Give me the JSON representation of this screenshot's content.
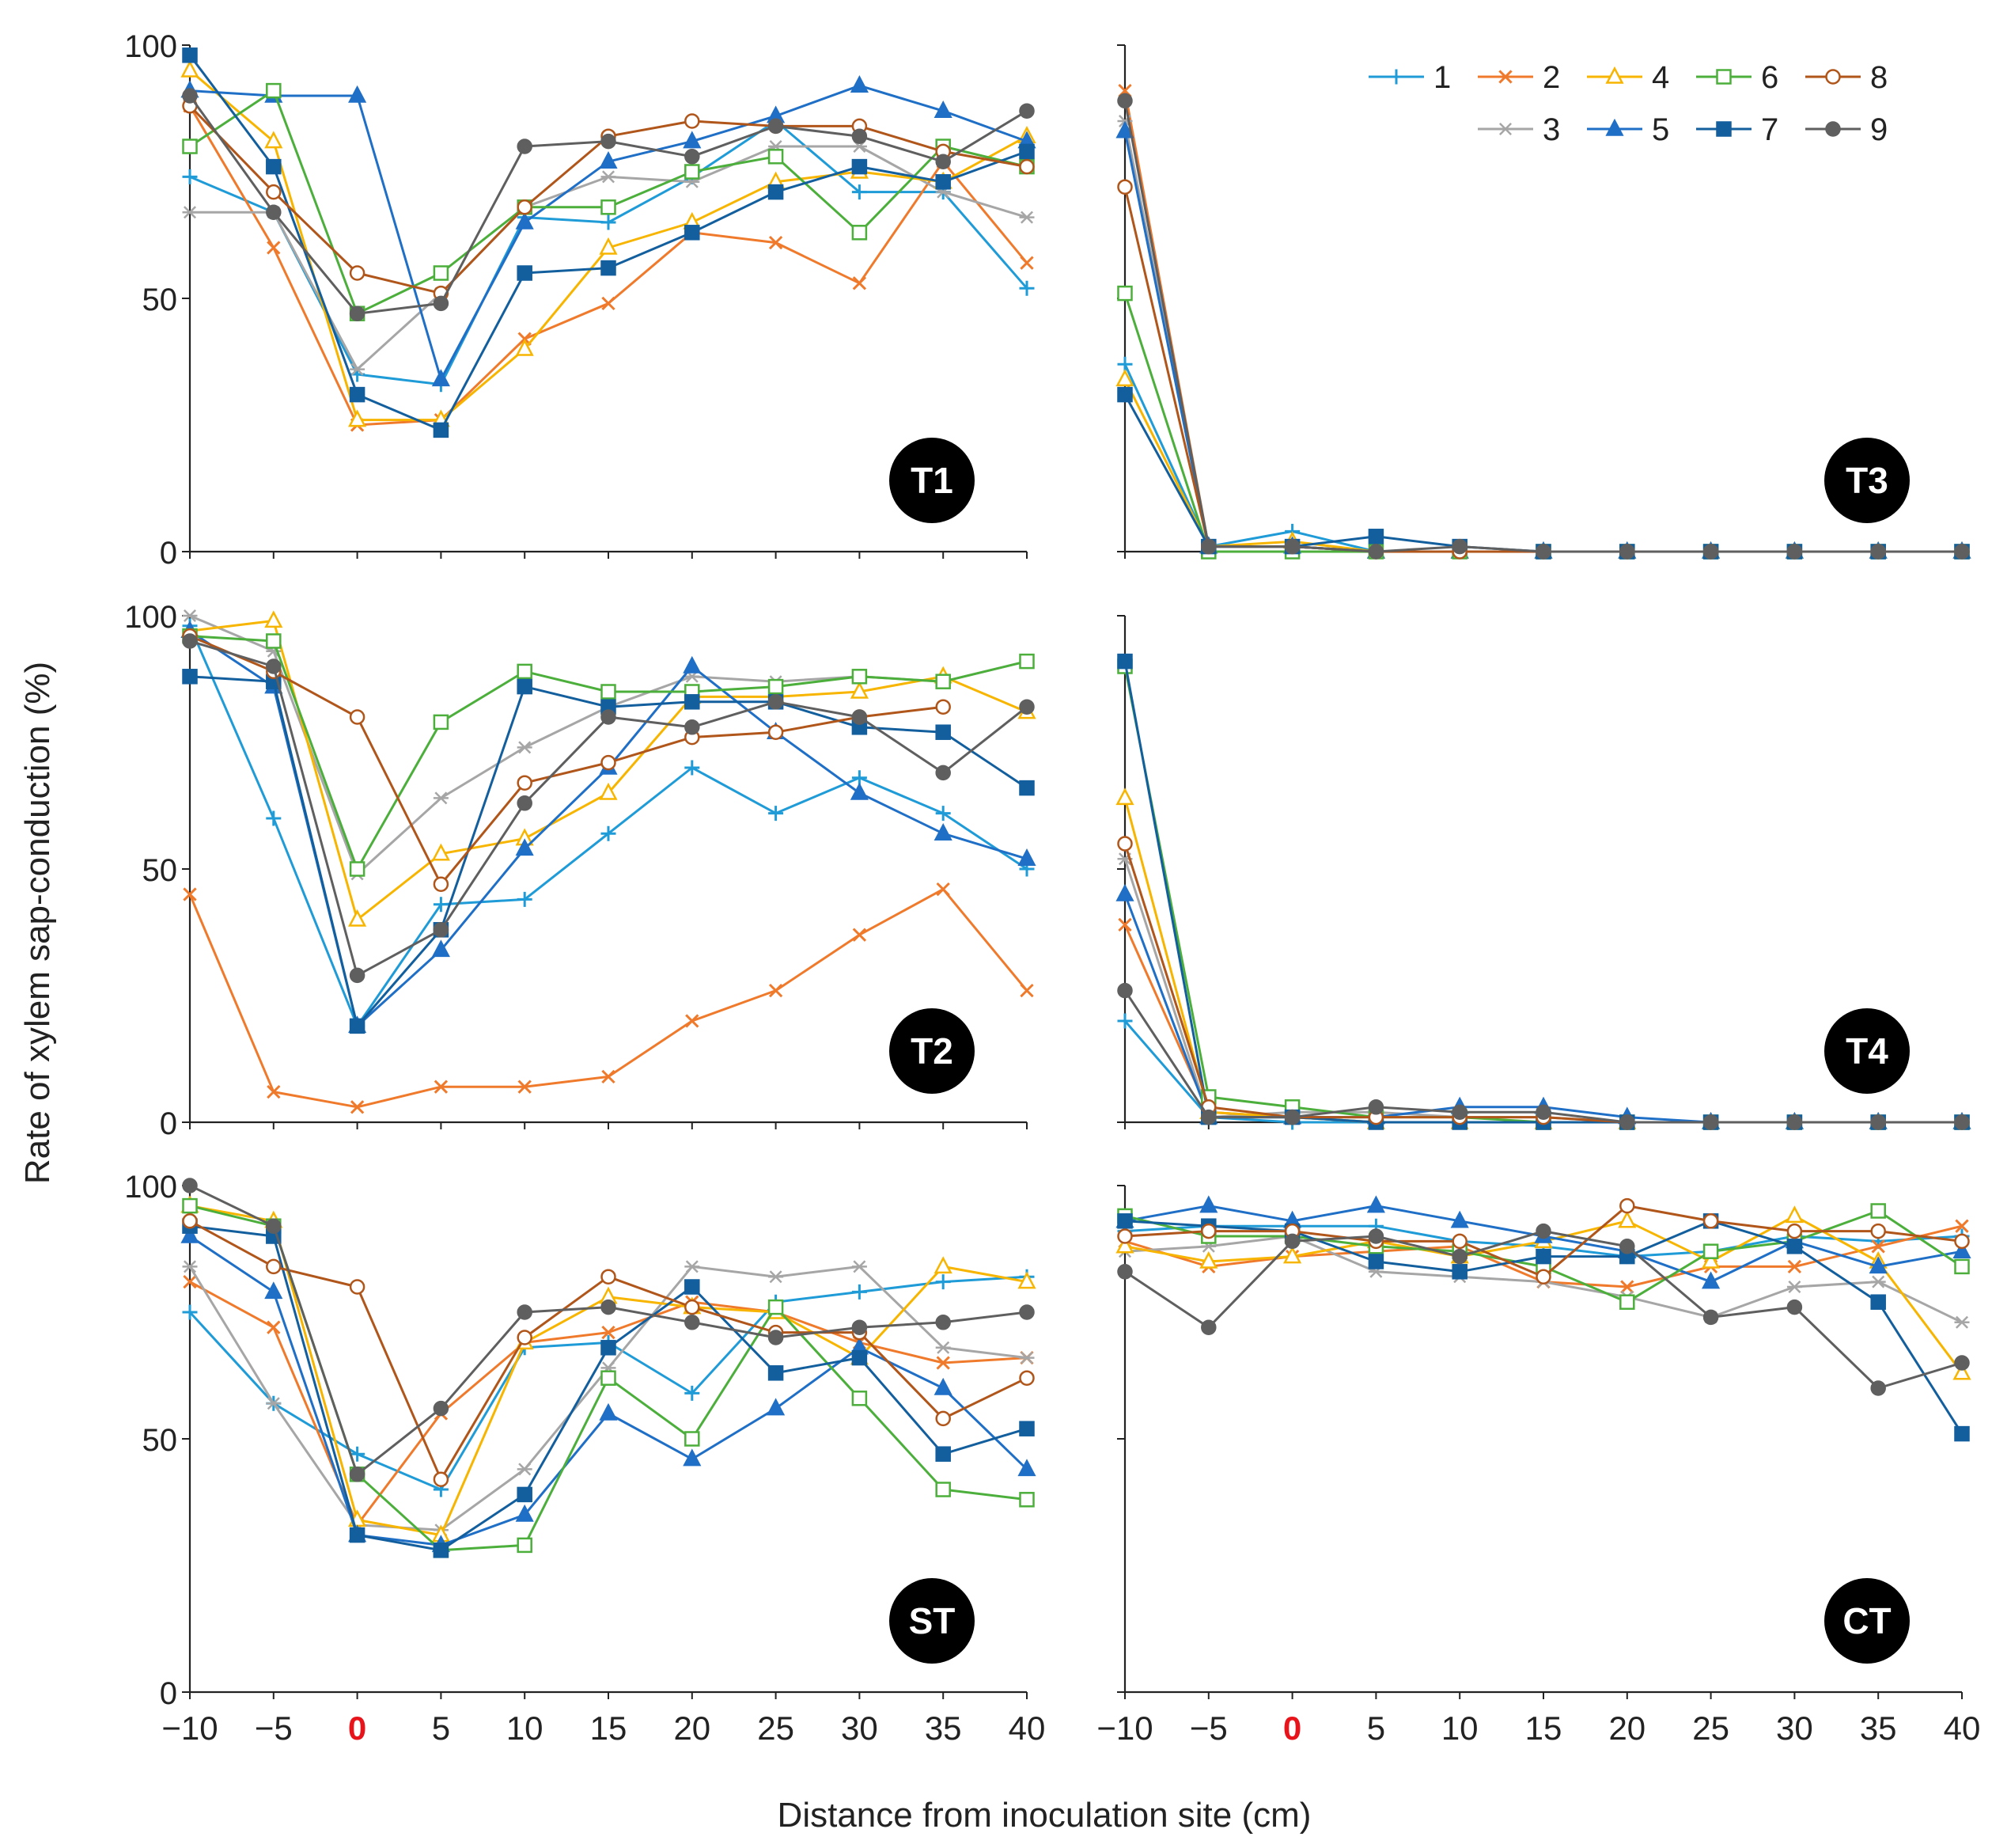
{
  "figure": {
    "ylabel": "Rate of xylem sap-conduction (%)",
    "xlabel": "Distance from inoculation site (cm)",
    "x_ticks": [
      "−10",
      "−5",
      "0",
      "5",
      "10",
      "15",
      "20",
      "25",
      "30",
      "35",
      "40"
    ],
    "highlight_tick": "0",
    "highlight_color": "#e8141b",
    "y_ticks": [
      "0",
      "50",
      "100"
    ],
    "legend_entries": [
      "1",
      "2",
      "4",
      "6",
      "8",
      "3",
      "5",
      "7",
      "9"
    ]
  },
  "chart_data": [
    {
      "type": "line",
      "panel": "T1",
      "position": "top-left",
      "x": [
        -10,
        -5,
        0,
        5,
        10,
        15,
        20,
        25,
        30,
        35,
        40
      ],
      "xlim": [
        -10,
        40
      ],
      "ylim": [
        0,
        100
      ],
      "show_y_tick_labels": true,
      "series": [
        {
          "name": "1",
          "values": [
            74,
            67,
            35,
            33,
            66,
            65,
            74,
            85,
            71,
            71,
            52
          ]
        },
        {
          "name": "2",
          "values": [
            88,
            60,
            25,
            26,
            42,
            49,
            63,
            61,
            53,
            77,
            57
          ]
        },
        {
          "name": "3",
          "values": [
            67,
            67,
            36,
            51,
            68,
            74,
            73,
            80,
            80,
            71,
            66
          ]
        },
        {
          "name": "4",
          "values": [
            95,
            81,
            26,
            26,
            40,
            60,
            65,
            73,
            75,
            73,
            82
          ]
        },
        {
          "name": "5",
          "values": [
            91,
            90,
            90,
            34,
            65,
            77,
            81,
            86,
            92,
            87,
            81
          ]
        },
        {
          "name": "6",
          "values": [
            80,
            91,
            47,
            55,
            68,
            68,
            75,
            78,
            63,
            80,
            76
          ]
        },
        {
          "name": "7",
          "values": [
            98,
            76,
            31,
            24,
            55,
            56,
            63,
            71,
            76,
            73,
            79
          ]
        },
        {
          "name": "8",
          "values": [
            88,
            71,
            55,
            51,
            68,
            82,
            85,
            84,
            84,
            79,
            76
          ]
        },
        {
          "name": "9",
          "values": [
            90,
            67,
            47,
            49,
            80,
            81,
            78,
            84,
            82,
            77,
            87
          ]
        }
      ]
    },
    {
      "type": "line",
      "panel": "T3",
      "position": "top-right",
      "x": [
        -10,
        -5,
        0,
        5,
        10,
        15,
        20,
        25,
        30,
        35,
        40
      ],
      "xlim": [
        -10,
        40
      ],
      "ylim": [
        0,
        100
      ],
      "show_y_tick_labels": false,
      "series": [
        {
          "name": "1",
          "values": [
            37,
            1,
            4,
            0,
            0,
            0,
            0,
            0,
            0,
            0,
            0
          ]
        },
        {
          "name": "2",
          "values": [
            91,
            1,
            1,
            0,
            0,
            0,
            0,
            0,
            0,
            0,
            0
          ]
        },
        {
          "name": "3",
          "values": [
            85,
            1,
            1,
            0,
            0,
            0,
            0,
            0,
            0,
            0,
            0
          ]
        },
        {
          "name": "4",
          "values": [
            34,
            1,
            2,
            0,
            0,
            0,
            0,
            0,
            0,
            0,
            0
          ]
        },
        {
          "name": "5",
          "values": [
            83,
            1,
            1,
            0,
            0,
            0,
            0,
            0,
            0,
            0,
            0
          ]
        },
        {
          "name": "6",
          "values": [
            51,
            0,
            0,
            0,
            0,
            0,
            0,
            0,
            0,
            0,
            0
          ]
        },
        {
          "name": "7",
          "values": [
            31,
            1,
            1,
            3,
            1,
            0,
            0,
            0,
            0,
            0,
            0
          ]
        },
        {
          "name": "8",
          "values": [
            72,
            1,
            1,
            0,
            0,
            0,
            0,
            0,
            0,
            0,
            0
          ]
        },
        {
          "name": "9",
          "values": [
            89,
            1,
            1,
            0,
            1,
            0,
            0,
            0,
            0,
            0,
            0
          ]
        }
      ]
    },
    {
      "type": "line",
      "panel": "T2",
      "position": "middle-left",
      "x": [
        -10,
        -5,
        0,
        5,
        10,
        15,
        20,
        25,
        30,
        35,
        40
      ],
      "xlim": [
        -10,
        40
      ],
      "ylim": [
        0,
        100
      ],
      "show_y_tick_labels": true,
      "series": [
        {
          "name": "1",
          "values": [
            98,
            60,
            19,
            43,
            44,
            57,
            70,
            61,
            68,
            61,
            50
          ]
        },
        {
          "name": "2",
          "values": [
            45,
            6,
            3,
            7,
            7,
            9,
            20,
            26,
            37,
            46,
            26
          ]
        },
        {
          "name": "3",
          "values": [
            100,
            93,
            49,
            64,
            74,
            82,
            88,
            87,
            88,
            87,
            91
          ]
        },
        {
          "name": "4",
          "values": [
            97,
            99,
            40,
            53,
            56,
            65,
            84,
            84,
            85,
            88,
            81
          ]
        },
        {
          "name": "5",
          "values": [
            97,
            86,
            19,
            34,
            54,
            70,
            90,
            77,
            65,
            57,
            52
          ]
        },
        {
          "name": "6",
          "values": [
            96,
            95,
            50,
            79,
            89,
            85,
            85,
            86,
            88,
            87,
            91
          ]
        },
        {
          "name": "7",
          "values": [
            88,
            87,
            19,
            38,
            86,
            82,
            83,
            83,
            78,
            77,
            66
          ]
        },
        {
          "name": "8",
          "values": [
            96,
            89,
            80,
            47,
            67,
            71,
            76,
            77,
            80,
            82,
            null
          ]
        },
        {
          "name": "9",
          "values": [
            95,
            90,
            29,
            38,
            63,
            80,
            78,
            83,
            80,
            69,
            82
          ]
        }
      ]
    },
    {
      "type": "line",
      "panel": "T4",
      "position": "middle-right",
      "x": [
        -10,
        -5,
        0,
        5,
        10,
        15,
        20,
        25,
        30,
        35,
        40
      ],
      "xlim": [
        -10,
        40
      ],
      "ylim": [
        0,
        100
      ],
      "show_y_tick_labels": false,
      "series": [
        {
          "name": "1",
          "values": [
            20,
            1,
            0,
            0,
            0,
            0,
            0,
            0,
            0,
            0,
            0
          ]
        },
        {
          "name": "2",
          "values": [
            39,
            2,
            1,
            0,
            0,
            0,
            0,
            0,
            0,
            0,
            0
          ]
        },
        {
          "name": "3",
          "values": [
            52,
            1,
            2,
            2,
            1,
            1,
            0,
            0,
            0,
            0,
            0
          ]
        },
        {
          "name": "4",
          "values": [
            64,
            2,
            1,
            0,
            0,
            0,
            0,
            0,
            0,
            0,
            0
          ]
        },
        {
          "name": "5",
          "values": [
            45,
            1,
            1,
            1,
            3,
            3,
            1,
            0,
            0,
            0,
            0
          ]
        },
        {
          "name": "6",
          "values": [
            90,
            5,
            3,
            1,
            1,
            0,
            0,
            0,
            0,
            0,
            0
          ]
        },
        {
          "name": "7",
          "values": [
            91,
            1,
            1,
            0,
            0,
            0,
            0,
            0,
            0,
            0,
            0
          ]
        },
        {
          "name": "8",
          "values": [
            55,
            3,
            1,
            1,
            1,
            1,
            0,
            0,
            0,
            0,
            0
          ]
        },
        {
          "name": "9",
          "values": [
            26,
            1,
            1,
            3,
            2,
            2,
            0,
            0,
            0,
            0,
            0
          ]
        }
      ]
    },
    {
      "type": "line",
      "panel": "ST",
      "position": "bottom-left",
      "x": [
        -10,
        -5,
        0,
        5,
        10,
        15,
        20,
        25,
        30,
        35,
        40
      ],
      "xlim": [
        -10,
        40
      ],
      "ylim": [
        0,
        100
      ],
      "show_y_tick_labels": true,
      "series": [
        {
          "name": "1",
          "values": [
            75,
            57,
            47,
            40,
            68,
            69,
            59,
            77,
            79,
            81,
            82
          ]
        },
        {
          "name": "2",
          "values": [
            81,
            72,
            33,
            55,
            69,
            71,
            77,
            75,
            69,
            65,
            66
          ]
        },
        {
          "name": "3",
          "values": [
            84,
            57,
            33,
            32,
            44,
            64,
            84,
            82,
            84,
            68,
            66
          ]
        },
        {
          "name": "4",
          "values": [
            96,
            93,
            34,
            31,
            69,
            78,
            76,
            75,
            66,
            84,
            81
          ]
        },
        {
          "name": "5",
          "values": [
            90,
            79,
            31,
            29,
            35,
            55,
            46,
            56,
            68,
            60,
            44
          ]
        },
        {
          "name": "6",
          "values": [
            96,
            92,
            43,
            28,
            29,
            62,
            50,
            76,
            58,
            40,
            38
          ]
        },
        {
          "name": "7",
          "values": [
            92,
            90,
            31,
            28,
            39,
            68,
            80,
            63,
            66,
            47,
            52
          ]
        },
        {
          "name": "8",
          "values": [
            93,
            84,
            80,
            42,
            70,
            82,
            76,
            71,
            71,
            54,
            62
          ]
        },
        {
          "name": "9",
          "values": [
            100,
            92,
            43,
            56,
            75,
            76,
            73,
            70,
            72,
            73,
            75
          ]
        }
      ]
    },
    {
      "type": "line",
      "panel": "CT",
      "position": "bottom-right",
      "x": [
        -10,
        -5,
        0,
        5,
        10,
        15,
        20,
        25,
        30,
        35,
        40
      ],
      "xlim": [
        -10,
        40
      ],
      "ylim": [
        0,
        100
      ],
      "show_y_tick_labels": false,
      "series": [
        {
          "name": "1",
          "values": [
            91,
            92,
            92,
            92,
            89,
            88,
            86,
            87,
            90,
            89,
            90
          ]
        },
        {
          "name": "2",
          "values": [
            89,
            84,
            86,
            87,
            88,
            81,
            80,
            84,
            84,
            88,
            92
          ]
        },
        {
          "name": "3",
          "values": [
            87,
            88,
            90,
            83,
            82,
            81,
            78,
            74,
            80,
            81,
            73
          ]
        },
        {
          "name": "4",
          "values": [
            88,
            85,
            86,
            89,
            86,
            89,
            93,
            85,
            94,
            85,
            63
          ]
        },
        {
          "name": "5",
          "values": [
            93,
            96,
            93,
            96,
            93,
            90,
            87,
            81,
            89,
            84,
            87
          ]
        },
        {
          "name": "6",
          "values": [
            94,
            90,
            90,
            88,
            87,
            84,
            77,
            87,
            89,
            95,
            84
          ]
        },
        {
          "name": "7",
          "values": [
            93,
            92,
            91,
            85,
            83,
            86,
            86,
            93,
            88,
            77,
            51
          ]
        },
        {
          "name": "8",
          "values": [
            90,
            91,
            91,
            89,
            89,
            82,
            96,
            93,
            91,
            91,
            89
          ]
        },
        {
          "name": "9",
          "values": [
            83,
            72,
            89,
            90,
            86,
            91,
            88,
            74,
            76,
            60,
            65
          ]
        }
      ]
    }
  ],
  "series_styles": {
    "1": {
      "color": "#1f9bd7",
      "marker": "plus"
    },
    "2": {
      "color": "#f07a2c",
      "marker": "cross"
    },
    "3": {
      "color": "#a6a6a6",
      "marker": "star"
    },
    "4": {
      "color": "#f7b500",
      "marker": "triangle-open"
    },
    "5": {
      "color": "#1f6fc7",
      "marker": "triangle"
    },
    "6": {
      "color": "#4caf3c",
      "marker": "square-open"
    },
    "7": {
      "color": "#135f9e",
      "marker": "square"
    },
    "8": {
      "color": "#b0561b",
      "marker": "circle-open"
    },
    "9": {
      "color": "#5f5f5f",
      "marker": "circle"
    }
  }
}
